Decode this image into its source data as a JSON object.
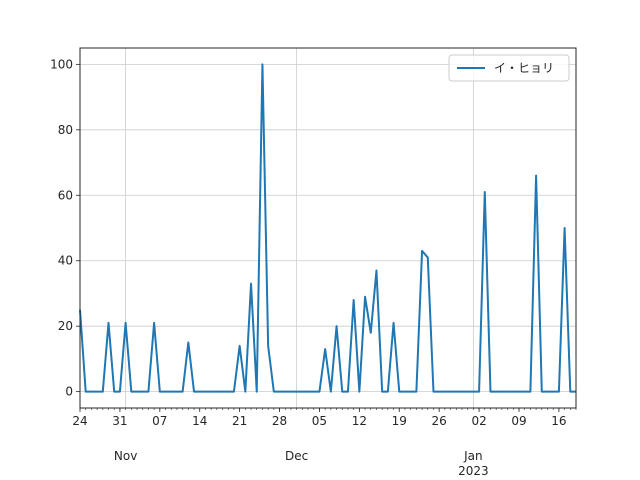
{
  "chart_data": {
    "type": "line",
    "title": "",
    "xlabel": "",
    "ylabel": "",
    "x_start": "2022-10-24",
    "x_end": "2023-01-19",
    "ylim": [
      -5,
      105
    ],
    "grid": true,
    "legend_position": "top-right",
    "line_color": "#1f77b4",
    "y_ticks": [
      0,
      20,
      40,
      60,
      80,
      100
    ],
    "x_major_ticks": [
      {
        "date": "2022-10-24",
        "label": "24"
      },
      {
        "date": "2022-10-31",
        "label": "31"
      },
      {
        "date": "2022-11-07",
        "label": "07"
      },
      {
        "date": "2022-11-14",
        "label": "14"
      },
      {
        "date": "2022-11-21",
        "label": "21"
      },
      {
        "date": "2022-11-28",
        "label": "28"
      },
      {
        "date": "2022-12-05",
        "label": "05"
      },
      {
        "date": "2022-12-12",
        "label": "12"
      },
      {
        "date": "2022-12-19",
        "label": "19"
      },
      {
        "date": "2022-12-26",
        "label": "26"
      },
      {
        "date": "2023-01-02",
        "label": "02"
      },
      {
        "date": "2023-01-09",
        "label": "09"
      },
      {
        "date": "2023-01-16",
        "label": "16"
      }
    ],
    "x_month_labels": [
      {
        "date": "2022-11-01",
        "label": "Nov"
      },
      {
        "date": "2022-12-01",
        "label": "Dec"
      },
      {
        "date": "2023-01-01",
        "label": "Jan\n2023"
      }
    ],
    "series": [
      {
        "name": "イ・ヒョリ",
        "points": [
          [
            "2022-10-24",
            25
          ],
          [
            "2022-10-25",
            0
          ],
          [
            "2022-10-26",
            0
          ],
          [
            "2022-10-27",
            0
          ],
          [
            "2022-10-28",
            0
          ],
          [
            "2022-10-29",
            21
          ],
          [
            "2022-10-30",
            0
          ],
          [
            "2022-10-31",
            0
          ],
          [
            "2022-11-01",
            21
          ],
          [
            "2022-11-02",
            0
          ],
          [
            "2022-11-03",
            0
          ],
          [
            "2022-11-04",
            0
          ],
          [
            "2022-11-05",
            0
          ],
          [
            "2022-11-06",
            21
          ],
          [
            "2022-11-07",
            0
          ],
          [
            "2022-11-08",
            0
          ],
          [
            "2022-11-09",
            0
          ],
          [
            "2022-11-10",
            0
          ],
          [
            "2022-11-11",
            0
          ],
          [
            "2022-11-12",
            15
          ],
          [
            "2022-11-13",
            0
          ],
          [
            "2022-11-14",
            0
          ],
          [
            "2022-11-15",
            0
          ],
          [
            "2022-11-16",
            0
          ],
          [
            "2022-11-17",
            0
          ],
          [
            "2022-11-18",
            0
          ],
          [
            "2022-11-19",
            0
          ],
          [
            "2022-11-20",
            0
          ],
          [
            "2022-11-21",
            14
          ],
          [
            "2022-11-22",
            0
          ],
          [
            "2022-11-23",
            33
          ],
          [
            "2022-11-24",
            0
          ],
          [
            "2022-11-25",
            100
          ],
          [
            "2022-11-26",
            14
          ],
          [
            "2022-11-27",
            0
          ],
          [
            "2022-11-28",
            0
          ],
          [
            "2022-11-29",
            0
          ],
          [
            "2022-11-30",
            0
          ],
          [
            "2022-12-01",
            0
          ],
          [
            "2022-12-02",
            0
          ],
          [
            "2022-12-03",
            0
          ],
          [
            "2022-12-04",
            0
          ],
          [
            "2022-12-05",
            0
          ],
          [
            "2022-12-06",
            13
          ],
          [
            "2022-12-07",
            0
          ],
          [
            "2022-12-08",
            20
          ],
          [
            "2022-12-09",
            0
          ],
          [
            "2022-12-10",
            0
          ],
          [
            "2022-12-11",
            28
          ],
          [
            "2022-12-12",
            0
          ],
          [
            "2022-12-13",
            29
          ],
          [
            "2022-12-14",
            18
          ],
          [
            "2022-12-15",
            37
          ],
          [
            "2022-12-16",
            0
          ],
          [
            "2022-12-17",
            0
          ],
          [
            "2022-12-18",
            21
          ],
          [
            "2022-12-19",
            0
          ],
          [
            "2022-12-20",
            0
          ],
          [
            "2022-12-21",
            0
          ],
          [
            "2022-12-22",
            0
          ],
          [
            "2022-12-23",
            43
          ],
          [
            "2022-12-24",
            41
          ],
          [
            "2022-12-25",
            0
          ],
          [
            "2022-12-26",
            0
          ],
          [
            "2022-12-27",
            0
          ],
          [
            "2022-12-28",
            0
          ],
          [
            "2022-12-29",
            0
          ],
          [
            "2022-12-30",
            0
          ],
          [
            "2022-12-31",
            0
          ],
          [
            "2023-01-01",
            0
          ],
          [
            "2023-01-02",
            0
          ],
          [
            "2023-01-03",
            61
          ],
          [
            "2023-01-04",
            0
          ],
          [
            "2023-01-05",
            0
          ],
          [
            "2023-01-06",
            0
          ],
          [
            "2023-01-07",
            0
          ],
          [
            "2023-01-08",
            0
          ],
          [
            "2023-01-09",
            0
          ],
          [
            "2023-01-10",
            0
          ],
          [
            "2023-01-11",
            0
          ],
          [
            "2023-01-12",
            66
          ],
          [
            "2023-01-13",
            0
          ],
          [
            "2023-01-14",
            0
          ],
          [
            "2023-01-15",
            0
          ],
          [
            "2023-01-16",
            0
          ],
          [
            "2023-01-17",
            50
          ],
          [
            "2023-01-18",
            0
          ],
          [
            "2023-01-19",
            0
          ]
        ]
      }
    ]
  }
}
